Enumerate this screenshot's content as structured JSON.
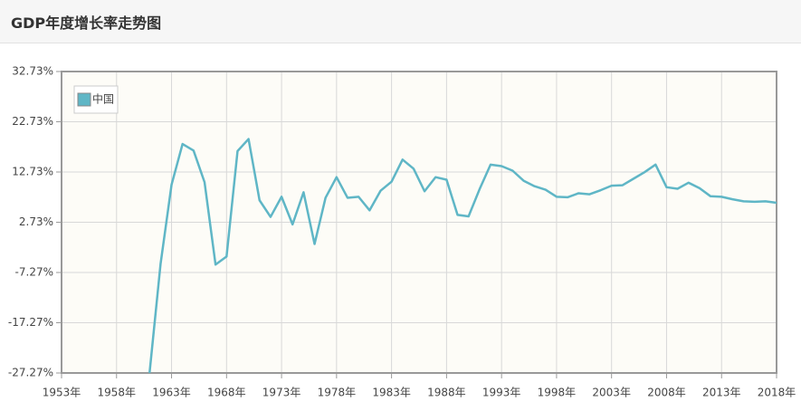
{
  "chart_data": {
    "type": "line",
    "title": "GDP年度增长率走势图",
    "x": [
      1961,
      1962,
      1963,
      1964,
      1965,
      1966,
      1967,
      1968,
      1969,
      1970,
      1971,
      1972,
      1973,
      1974,
      1975,
      1976,
      1977,
      1978,
      1979,
      1980,
      1981,
      1982,
      1983,
      1984,
      1985,
      1986,
      1987,
      1988,
      1989,
      1990,
      1991,
      1992,
      1993,
      1994,
      1995,
      1996,
      1997,
      1998,
      1999,
      2000,
      2001,
      2002,
      2003,
      2004,
      2005,
      2006,
      2007,
      2008,
      2009,
      2010,
      2011,
      2012,
      2013,
      2014,
      2015,
      2016,
      2017,
      2018
    ],
    "series": [
      {
        "name": "中国",
        "color": "#5fb6c6",
        "values": [
          -27.27,
          -5.6,
          10.2,
          18.3,
          17.0,
          10.7,
          -5.7,
          -4.1,
          16.9,
          19.3,
          7.1,
          3.8,
          7.8,
          2.3,
          8.7,
          -1.6,
          7.6,
          11.7,
          7.6,
          7.8,
          5.1,
          9.0,
          10.8,
          15.2,
          13.4,
          8.9,
          11.7,
          11.2,
          4.2,
          3.9,
          9.3,
          14.2,
          13.9,
          13.0,
          11.0,
          9.9,
          9.2,
          7.8,
          7.7,
          8.5,
          8.3,
          9.1,
          10.0,
          10.1,
          11.4,
          12.7,
          14.2,
          9.7,
          9.4,
          10.6,
          9.5,
          7.9,
          7.8,
          7.3,
          6.9,
          6.8,
          6.9,
          6.6
        ]
      }
    ],
    "xlim": [
      1953,
      2018
    ],
    "xticks": [
      {
        "value": 1953,
        "label": "1953年"
      },
      {
        "value": 1958,
        "label": "1958年"
      },
      {
        "value": 1963,
        "label": "1963年"
      },
      {
        "value": 1968,
        "label": "1968年"
      },
      {
        "value": 1973,
        "label": "1973年"
      },
      {
        "value": 1978,
        "label": "1978年"
      },
      {
        "value": 1983,
        "label": "1983年"
      },
      {
        "value": 1988,
        "label": "1988年"
      },
      {
        "value": 1993,
        "label": "1993年"
      },
      {
        "value": 1998,
        "label": "1998年"
      },
      {
        "value": 2003,
        "label": "2003年"
      },
      {
        "value": 2008,
        "label": "2008年"
      },
      {
        "value": 2013,
        "label": "2013年"
      },
      {
        "value": 2018,
        "label": "2018年"
      }
    ],
    "ylim": [
      -27.27,
      32.73
    ],
    "yticks": [
      {
        "value": 32.73,
        "label": "32.73%"
      },
      {
        "value": 22.73,
        "label": "22.73%"
      },
      {
        "value": 12.73,
        "label": "12.73%"
      },
      {
        "value": 2.73,
        "label": "2.73%"
      },
      {
        "value": -7.27,
        "label": "-7.27%"
      },
      {
        "value": -17.27,
        "label": "-17.27%"
      },
      {
        "value": -27.27,
        "label": "-27.27%"
      }
    ],
    "grid": true,
    "legend": "top-left"
  }
}
